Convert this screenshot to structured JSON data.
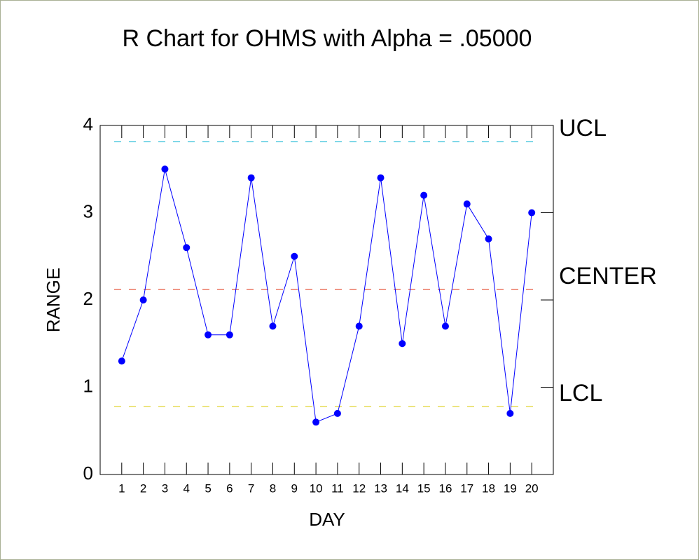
{
  "chart_data": {
    "type": "line",
    "title": "R Chart for OHMS with Alpha = .05000",
    "x_label": "DAY",
    "y_label": "RANGE",
    "x": [
      1,
      2,
      3,
      4,
      5,
      6,
      7,
      8,
      9,
      10,
      11,
      12,
      13,
      14,
      15,
      16,
      17,
      18,
      19,
      20
    ],
    "series": [
      {
        "name": "RANGE",
        "color": "#0000ff",
        "values": [
          1.3,
          2.0,
          3.5,
          2.6,
          1.6,
          1.6,
          3.4,
          1.7,
          2.5,
          0.6,
          0.7,
          1.7,
          3.4,
          1.5,
          3.2,
          1.7,
          3.1,
          2.7,
          0.7,
          3.0
        ]
      }
    ],
    "control_lines": [
      {
        "name": "UCL",
        "value": 3.815,
        "color": "#00b0d0"
      },
      {
        "name": "CENTER",
        "value": 2.12,
        "color": "#e03010"
      },
      {
        "name": "LCL",
        "value": 0.779,
        "color": "#d8c800"
      }
    ],
    "xlim": [
      0,
      21
    ],
    "xticks": [
      1,
      2,
      3,
      4,
      5,
      6,
      7,
      8,
      9,
      10,
      11,
      12,
      13,
      14,
      15,
      16,
      17,
      18,
      19,
      20
    ],
    "ylim": [
      0,
      4
    ],
    "yticks": [
      0,
      1,
      2,
      3,
      4
    ]
  }
}
